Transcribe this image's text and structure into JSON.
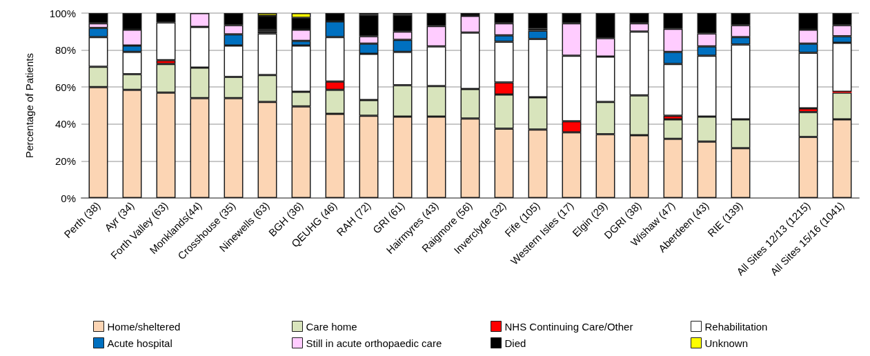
{
  "chart_data": {
    "type": "bar",
    "stacked": true,
    "ylabel": "Percentage of Patients",
    "categories": [
      "Perth (38)",
      "Ayr (34)",
      "Forth Valley (63)",
      "Monklands(44)",
      "Crosshouse (35)",
      "Ninewells (63)",
      "BGH (36)",
      "QEUHG (46)",
      "RAH (72)",
      "GRI (61)",
      "Hairmyres (43)",
      "Raigmore (56)",
      "Inverclyde (32)",
      "Fife (105)",
      "Western Isles (17)",
      "Elgin (29)",
      "DGRI (38)",
      "Wishaw (47)",
      "Aberdeen (43)",
      "RIE (139)",
      null,
      "All Sites 12/13 (1215)",
      "All Sites 15/16 (1041)"
    ],
    "series": [
      {
        "name": "Home/sheltered",
        "color": "#fcd5b4",
        "values": [
          60,
          58.5,
          57,
          54,
          54,
          52,
          49.5,
          45.5,
          44.5,
          44,
          44,
          43,
          37.5,
          37,
          35.5,
          34.5,
          34,
          32,
          30.5,
          27,
          null,
          33,
          42.5
        ]
      },
      {
        "name": "Care home",
        "color": "#d8e4bc",
        "values": [
          11,
          8.5,
          15.5,
          16.5,
          11.5,
          14.5,
          8,
          13,
          8.5,
          17,
          16.5,
          16,
          18.5,
          17.5,
          0,
          17.5,
          21.5,
          10.5,
          13.5,
          15.5,
          null,
          13.5,
          14.5
        ]
      },
      {
        "name": "NHS Continuing Care/Other",
        "color": "#ff0000",
        "values": [
          0,
          0,
          2,
          0,
          0,
          0,
          0,
          4.5,
          0,
          0,
          0,
          0,
          6.5,
          0,
          6,
          0,
          0,
          2,
          0,
          0,
          null,
          2,
          0.5
        ]
      },
      {
        "name": "Rehabilitation",
        "color": "#ffffff",
        "values": [
          16,
          12,
          20.5,
          22,
          17,
          22.5,
          25,
          24,
          25,
          18,
          21.5,
          30.5,
          22,
          31.5,
          35.5,
          24.5,
          34.5,
          28,
          33,
          40.5,
          null,
          30,
          26.5
        ]
      },
      {
        "name": "Acute hospital",
        "color": "#0070c0",
        "values": [
          5,
          3.5,
          0,
          0,
          6,
          1,
          2.5,
          8.5,
          5.5,
          6.5,
          0,
          0,
          3.5,
          4.5,
          0,
          0,
          0,
          6.5,
          5,
          4,
          null,
          5,
          3.5
        ]
      },
      {
        "name": "Still in acute orthopaedic care",
        "color": "#ffccff",
        "values": [
          2.5,
          8.5,
          0,
          7.5,
          5,
          1,
          6,
          0,
          4,
          4.5,
          11,
          9,
          6.5,
          1,
          17.5,
          10,
          4.5,
          12.5,
          7,
          6.5,
          null,
          7.5,
          6
        ]
      },
      {
        "name": "Died",
        "color": "#000000",
        "values": [
          5.5,
          9,
          5,
          0,
          6.5,
          7.5,
          6.5,
          4.5,
          11.5,
          9,
          7,
          1.5,
          5.5,
          8.5,
          5.5,
          13.5,
          5.5,
          8.5,
          11,
          6.5,
          null,
          9,
          6.5
        ]
      },
      {
        "name": "Unknown",
        "color": "#ffff00",
        "values": [
          0,
          0,
          0,
          0,
          0,
          1.5,
          2.5,
          0,
          1,
          1,
          0,
          0,
          0,
          0,
          0,
          0,
          0,
          0,
          0,
          0,
          null,
          0,
          0
        ]
      }
    ],
    "ylim": [
      0,
      100
    ],
    "yticks": [
      {
        "value": 0,
        "label": "0%"
      },
      {
        "value": 20,
        "label": "20%"
      },
      {
        "value": 40,
        "label": "40%"
      },
      {
        "value": 60,
        "label": "60%"
      },
      {
        "value": 80,
        "label": "80%"
      },
      {
        "value": 100,
        "label": "100%"
      }
    ],
    "grid": "y",
    "legend": "bottom"
  }
}
